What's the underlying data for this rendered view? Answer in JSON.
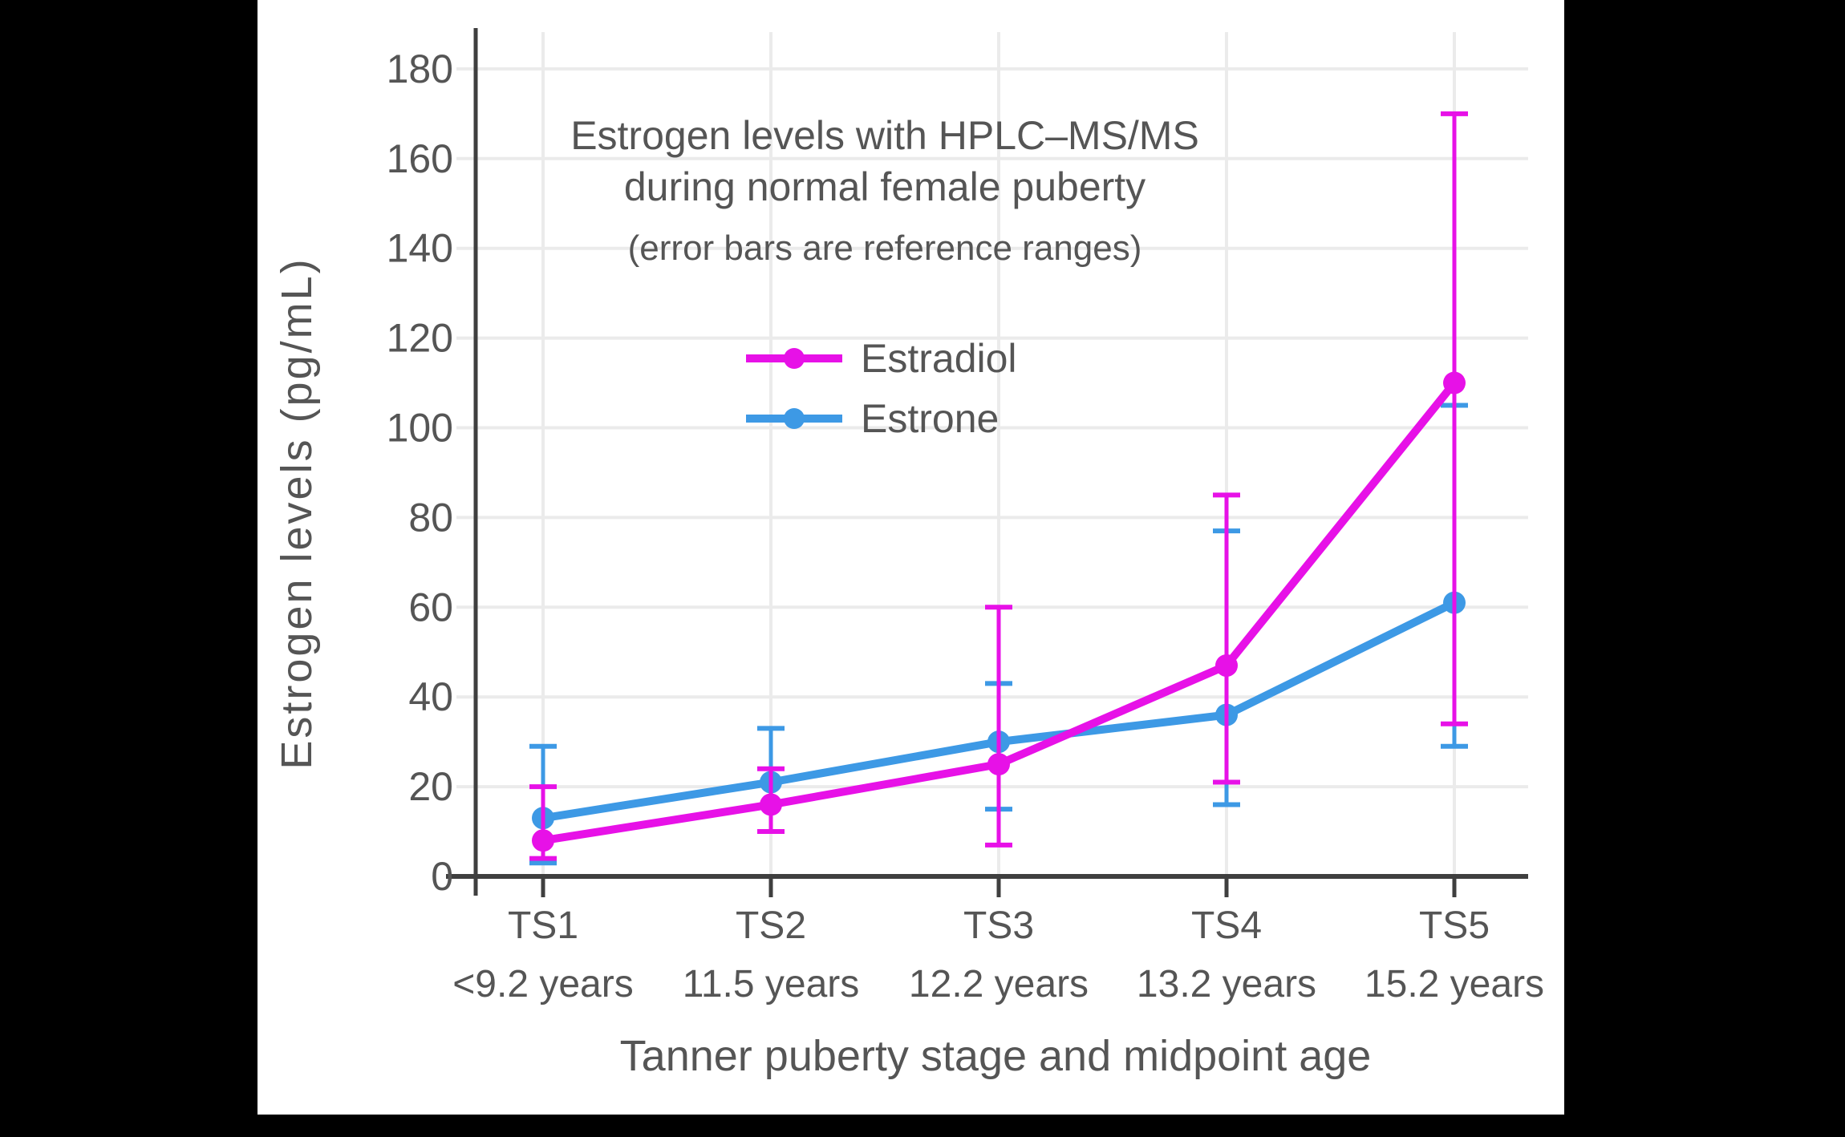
{
  "page": {
    "background": "#000000",
    "panel_background": "#ffffff"
  },
  "chart_data": {
    "type": "line",
    "title_line1": "Estrogen levels with HPLC–MS/MS",
    "title_line2": "during normal female puberty",
    "subtitle": "(error bars are reference ranges)",
    "xlabel": "Tanner puberty stage and midpoint age",
    "ylabel": "Estrogen levels (pg/mL)",
    "y_axis": {
      "min": 0,
      "max": 180,
      "step": 20,
      "tick_labels": [
        "0",
        "20",
        "40",
        "60",
        "80",
        "100",
        "120",
        "140",
        "160",
        "180"
      ]
    },
    "categories": [
      {
        "stage": "TS1",
        "age": "<9.2 years"
      },
      {
        "stage": "TS2",
        "age": "11.5 years"
      },
      {
        "stage": "TS3",
        "age": "12.2 years"
      },
      {
        "stage": "TS4",
        "age": "13.2 years"
      },
      {
        "stage": "TS5",
        "age": "15.2 years"
      }
    ],
    "series": [
      {
        "name": "Estrone",
        "color": "#3D99E5",
        "values": [
          13,
          21,
          30,
          36,
          61
        ],
        "low": [
          3,
          10,
          15,
          16,
          29
        ],
        "high": [
          29,
          33,
          43,
          77,
          105
        ]
      },
      {
        "name": "Estradiol",
        "color": "#E711E7",
        "values": [
          8,
          16,
          25,
          47,
          110
        ],
        "low": [
          4,
          10,
          7,
          21,
          34
        ],
        "high": [
          20,
          24,
          60,
          85,
          170
        ]
      }
    ],
    "legend": [
      {
        "label": "Estradiol",
        "color": "#E711E7"
      },
      {
        "label": "Estrone",
        "color": "#3D99E5"
      }
    ],
    "grid": true,
    "error_bars": true,
    "legend_position": "upper-center-inside",
    "colors": {
      "grid": "#EBEBEB",
      "axis": "#3F3F3F",
      "text": "#555555"
    }
  }
}
